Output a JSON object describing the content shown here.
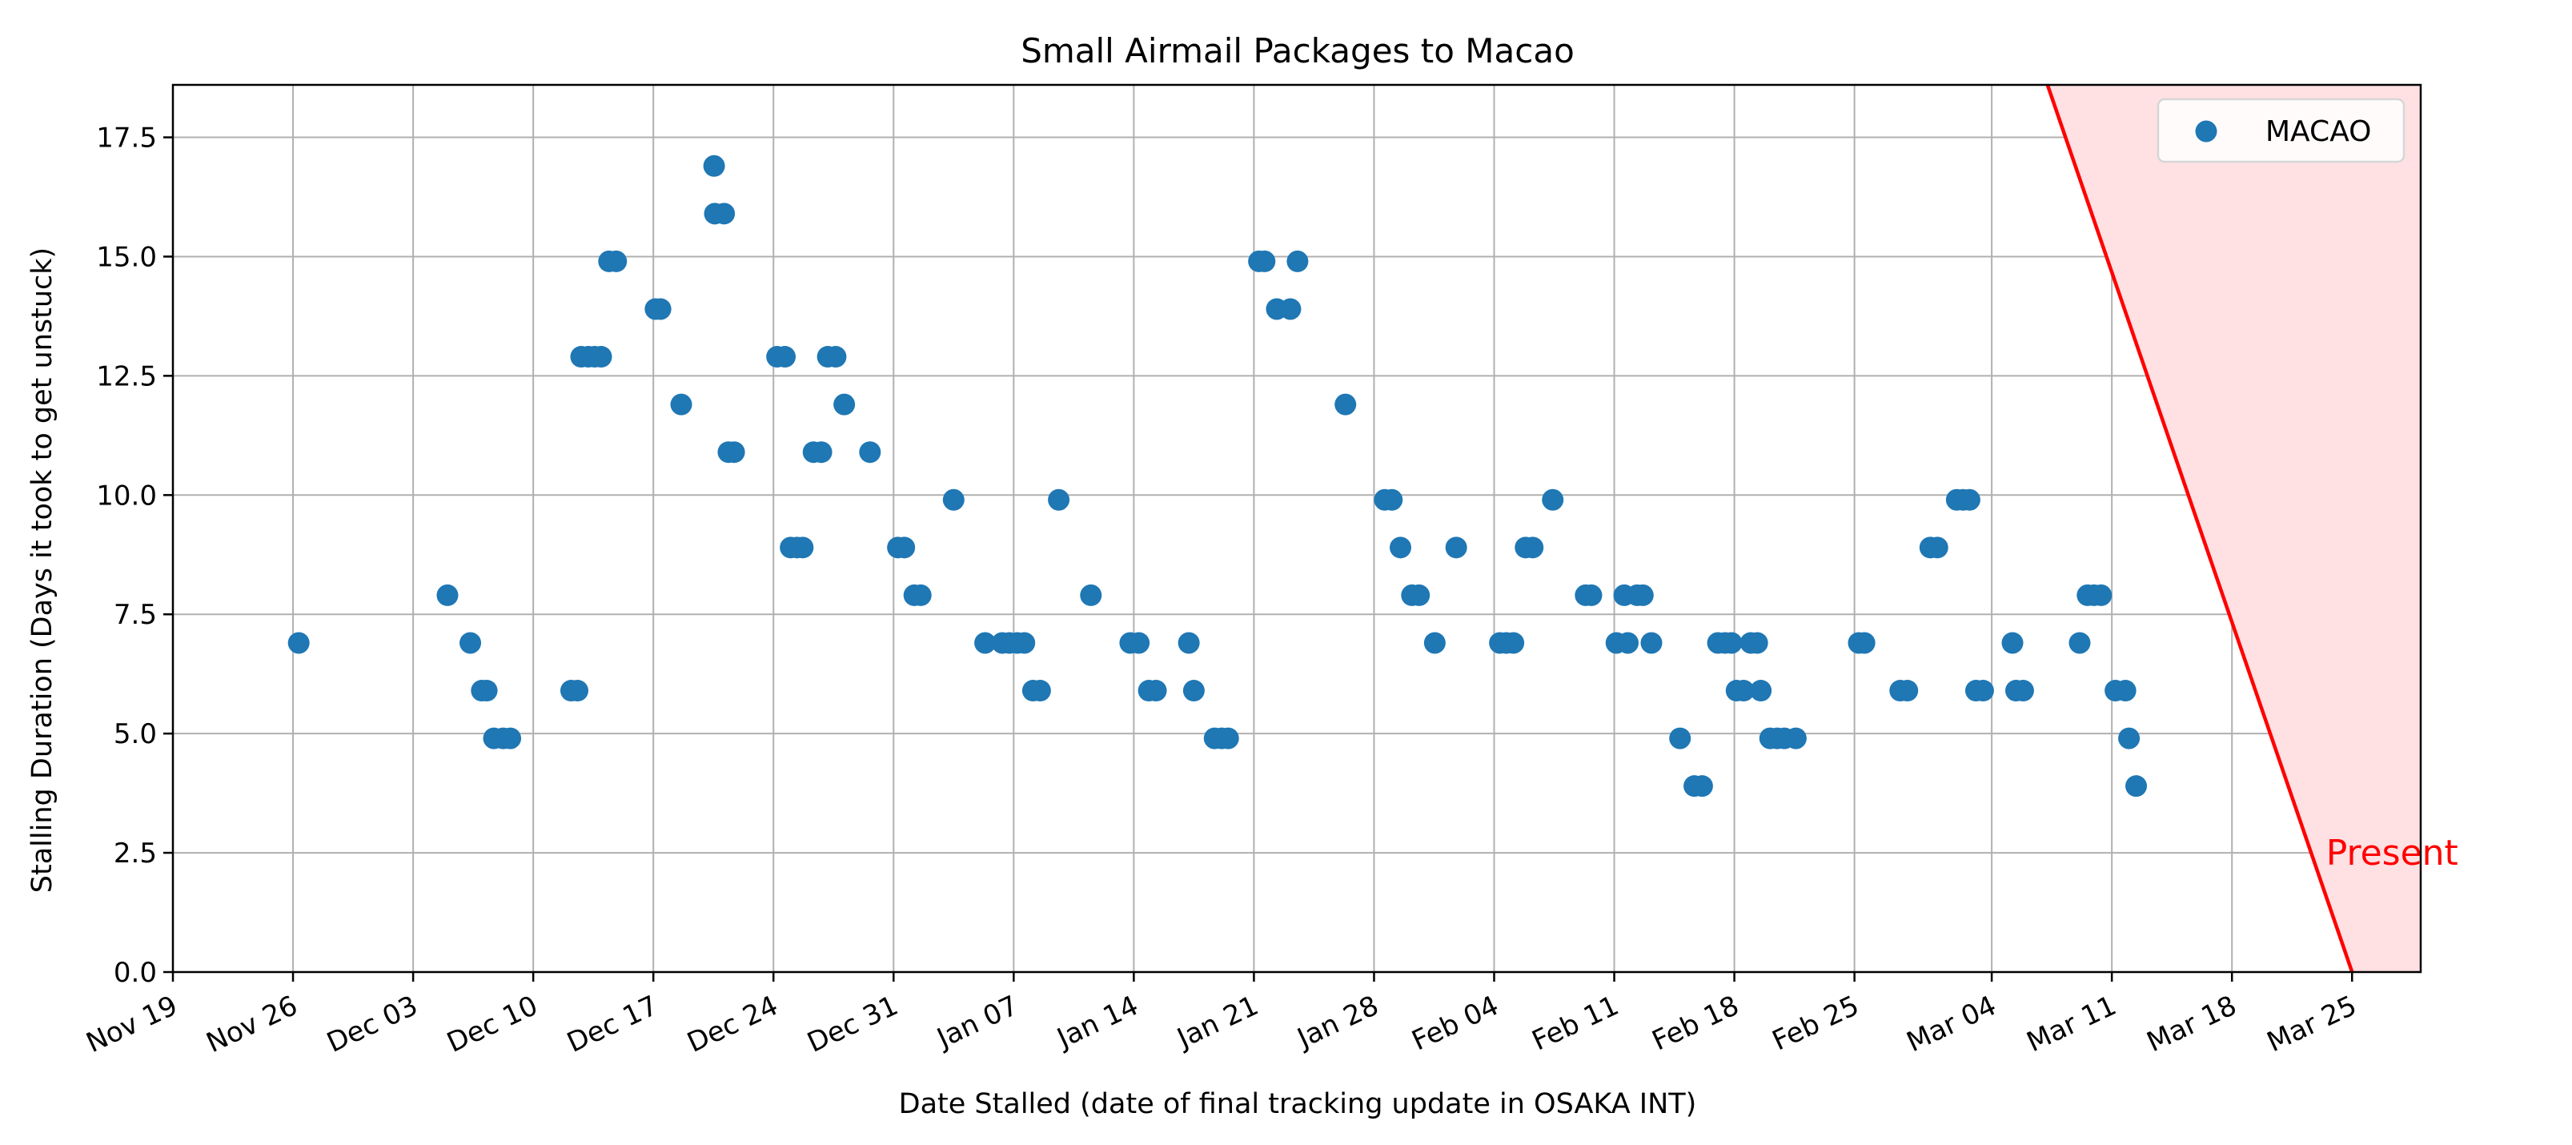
{
  "chart_data": {
    "type": "scatter",
    "title": "Small Airmail Packages to Macao",
    "xlabel": "Date Stalled (date of final tracking update in OSAKA INT)",
    "ylabel": "Stalling Duration (Days it took to get unstuck)",
    "xlim": [
      "2023-11-19",
      "2024-03-29"
    ],
    "ylim": [
      0,
      18.6
    ],
    "x_ticks": [
      {
        "date": "2023-11-19",
        "label": "Nov 19"
      },
      {
        "date": "2023-11-26",
        "label": "Nov 26"
      },
      {
        "date": "2023-12-03",
        "label": "Dec 03"
      },
      {
        "date": "2023-12-10",
        "label": "Dec 10"
      },
      {
        "date": "2023-12-17",
        "label": "Dec 17"
      },
      {
        "date": "2023-12-24",
        "label": "Dec 24"
      },
      {
        "date": "2023-12-31",
        "label": "Dec 31"
      },
      {
        "date": "2024-01-07",
        "label": "Jan 07"
      },
      {
        "date": "2024-01-14",
        "label": "Jan 14"
      },
      {
        "date": "2024-01-21",
        "label": "Jan 21"
      },
      {
        "date": "2024-01-28",
        "label": "Jan 28"
      },
      {
        "date": "2024-02-04",
        "label": "Feb 04"
      },
      {
        "date": "2024-02-11",
        "label": "Feb 11"
      },
      {
        "date": "2024-02-18",
        "label": "Feb 18"
      },
      {
        "date": "2024-02-25",
        "label": "Feb 25"
      },
      {
        "date": "2024-03-04",
        "label": "Mar 04"
      },
      {
        "date": "2024-03-11",
        "label": "Mar 11"
      },
      {
        "date": "2024-03-18",
        "label": "Mar 18"
      },
      {
        "date": "2024-03-25",
        "label": "Mar 25"
      }
    ],
    "y_ticks": [
      {
        "value": 0,
        "label": "0.0"
      },
      {
        "value": 2.5,
        "label": "2.5"
      },
      {
        "value": 5,
        "label": "5.0"
      },
      {
        "value": 7.5,
        "label": "7.5"
      },
      {
        "value": 10,
        "label": "10.0"
      },
      {
        "value": 12.5,
        "label": "12.5"
      },
      {
        "value": 15,
        "label": "15.0"
      },
      {
        "value": 17.5,
        "label": "17.5"
      }
    ],
    "grid": true,
    "legend_position": "top-right",
    "series": [
      {
        "name": "MACAO",
        "color": "#1f77b4",
        "points": [
          {
            "x": "2023-11-26 08:00",
            "y": 6.9
          },
          {
            "x": "2023-12-05 00:00",
            "y": 7.9
          },
          {
            "x": "2023-12-06 08:00",
            "y": 6.9
          },
          {
            "x": "2023-12-07 00:00",
            "y": 5.9
          },
          {
            "x": "2023-12-07 07:00",
            "y": 5.9
          },
          {
            "x": "2023-12-07 17:00",
            "y": 4.9
          },
          {
            "x": "2023-12-08 06:00",
            "y": 4.9
          },
          {
            "x": "2023-12-08 16:00",
            "y": 4.9
          },
          {
            "x": "2023-12-12 05:00",
            "y": 5.9
          },
          {
            "x": "2023-12-12 14:00",
            "y": 5.9
          },
          {
            "x": "2023-12-12 19:00",
            "y": 12.9
          },
          {
            "x": "2023-12-13 05:00",
            "y": 12.9
          },
          {
            "x": "2023-12-13 14:00",
            "y": 12.9
          },
          {
            "x": "2023-12-13 23:00",
            "y": 12.9
          },
          {
            "x": "2023-12-14 10:00",
            "y": 14.9
          },
          {
            "x": "2023-12-14 20:00",
            "y": 14.9
          },
          {
            "x": "2023-12-17 03:00",
            "y": 13.9
          },
          {
            "x": "2023-12-17 10:00",
            "y": 13.9
          },
          {
            "x": "2023-12-18 15:00",
            "y": 11.9
          },
          {
            "x": "2023-12-20 13:00",
            "y": 16.9
          },
          {
            "x": "2023-12-20 14:00",
            "y": 15.9
          },
          {
            "x": "2023-12-21 03:00",
            "y": 15.9
          },
          {
            "x": "2023-12-21 09:00",
            "y": 10.9
          },
          {
            "x": "2023-12-21 17:00",
            "y": 10.9
          },
          {
            "x": "2023-12-24 05:00",
            "y": 12.9
          },
          {
            "x": "2023-12-24 16:00",
            "y": 12.9
          },
          {
            "x": "2023-12-25 00:00",
            "y": 8.9
          },
          {
            "x": "2023-12-25 09:00",
            "y": 8.9
          },
          {
            "x": "2023-12-25 17:00",
            "y": 8.9
          },
          {
            "x": "2023-12-26 08:00",
            "y": 10.9
          },
          {
            "x": "2023-12-26 19:00",
            "y": 10.9
          },
          {
            "x": "2023-12-27 04:00",
            "y": 12.9
          },
          {
            "x": "2023-12-27 15:00",
            "y": 12.9
          },
          {
            "x": "2023-12-28 03:00",
            "y": 11.9
          },
          {
            "x": "2023-12-29 15:00",
            "y": 10.9
          },
          {
            "x": "2023-12-31 06:00",
            "y": 8.9
          },
          {
            "x": "2023-12-31 15:00",
            "y": 8.9
          },
          {
            "x": "2024-01-01 05:00",
            "y": 7.9
          },
          {
            "x": "2024-01-01 14:00",
            "y": 7.9
          },
          {
            "x": "2024-01-03 12:00",
            "y": 9.9
          },
          {
            "x": "2024-01-05 08:00",
            "y": 6.9
          },
          {
            "x": "2024-01-06 08:00",
            "y": 6.9
          },
          {
            "x": "2024-01-06 18:00",
            "y": 6.9
          },
          {
            "x": "2024-01-07 05:00",
            "y": 6.9
          },
          {
            "x": "2024-01-07 15:00",
            "y": 6.9
          },
          {
            "x": "2024-01-08 03:00",
            "y": 5.9
          },
          {
            "x": "2024-01-08 13:00",
            "y": 5.9
          },
          {
            "x": "2024-01-09 15:00",
            "y": 9.9
          },
          {
            "x": "2024-01-11 12:00",
            "y": 7.9
          },
          {
            "x": "2024-01-13 19:00",
            "y": 6.9
          },
          {
            "x": "2024-01-14 07:00",
            "y": 6.9
          },
          {
            "x": "2024-01-14 21:00",
            "y": 5.9
          },
          {
            "x": "2024-01-15 07:00",
            "y": 5.9
          },
          {
            "x": "2024-01-17 05:00",
            "y": 6.9
          },
          {
            "x": "2024-01-17 12:00",
            "y": 5.9
          },
          {
            "x": "2024-01-18 17:00",
            "y": 4.9
          },
          {
            "x": "2024-01-19 03:00",
            "y": 4.9
          },
          {
            "x": "2024-01-19 12:00",
            "y": 4.9
          },
          {
            "x": "2024-01-21 07:00",
            "y": 14.9
          },
          {
            "x": "2024-01-21 15:00",
            "y": 14.9
          },
          {
            "x": "2024-01-22 08:00",
            "y": 13.9
          },
          {
            "x": "2024-01-23 03:00",
            "y": 13.9
          },
          {
            "x": "2024-01-23 13:00",
            "y": 14.9
          },
          {
            "x": "2024-01-26 08:00",
            "y": 11.9
          },
          {
            "x": "2024-01-28 15:00",
            "y": 9.9
          },
          {
            "x": "2024-01-29 01:00",
            "y": 9.9
          },
          {
            "x": "2024-01-29 13:00",
            "y": 8.9
          },
          {
            "x": "2024-01-30 05:00",
            "y": 7.9
          },
          {
            "x": "2024-01-30 15:00",
            "y": 7.9
          },
          {
            "x": "2024-01-31 13:00",
            "y": 6.9
          },
          {
            "x": "2024-02-01 19:00",
            "y": 8.9
          },
          {
            "x": "2024-02-04 08:00",
            "y": 6.9
          },
          {
            "x": "2024-02-04 17:00",
            "y": 6.9
          },
          {
            "x": "2024-02-05 03:00",
            "y": 6.9
          },
          {
            "x": "2024-02-05 20:00",
            "y": 8.9
          },
          {
            "x": "2024-02-06 06:00",
            "y": 8.9
          },
          {
            "x": "2024-02-07 10:00",
            "y": 9.9
          },
          {
            "x": "2024-02-09 08:00",
            "y": 7.9
          },
          {
            "x": "2024-02-09 16:00",
            "y": 7.9
          },
          {
            "x": "2024-02-11 03:00",
            "y": 6.9
          },
          {
            "x": "2024-02-11 14:00",
            "y": 7.9
          },
          {
            "x": "2024-02-11 19:00",
            "y": 6.9
          },
          {
            "x": "2024-02-12 08:00",
            "y": 7.9
          },
          {
            "x": "2024-02-12 16:00",
            "y": 7.9
          },
          {
            "x": "2024-02-13 04:00",
            "y": 6.9
          },
          {
            "x": "2024-02-14 20:00",
            "y": 4.9
          },
          {
            "x": "2024-02-15 16:00",
            "y": 3.9
          },
          {
            "x": "2024-02-16 03:00",
            "y": 3.9
          },
          {
            "x": "2024-02-17 01:00",
            "y": 6.9
          },
          {
            "x": "2024-02-17 11:00",
            "y": 6.9
          },
          {
            "x": "2024-02-17 20:00",
            "y": 6.9
          },
          {
            "x": "2024-02-18 03:00",
            "y": 5.9
          },
          {
            "x": "2024-02-18 13:00",
            "y": 5.9
          },
          {
            "x": "2024-02-18 23:00",
            "y": 6.9
          },
          {
            "x": "2024-02-19 08:00",
            "y": 6.9
          },
          {
            "x": "2024-02-19 13:00",
            "y": 5.9
          },
          {
            "x": "2024-02-20 02:00",
            "y": 4.9
          },
          {
            "x": "2024-02-20 12:00",
            "y": 4.9
          },
          {
            "x": "2024-02-20 22:00",
            "y": 4.9
          },
          {
            "x": "2024-02-21 14:00",
            "y": 4.9
          },
          {
            "x": "2024-02-25 06:00",
            "y": 6.9
          },
          {
            "x": "2024-02-25 14:00",
            "y": 6.9
          },
          {
            "x": "2024-02-27 16:00",
            "y": 5.9
          },
          {
            "x": "2024-02-28 02:00",
            "y": 5.9
          },
          {
            "x": "2024-02-29 10:00",
            "y": 8.9
          },
          {
            "x": "2024-02-29 20:00",
            "y": 8.9
          },
          {
            "x": "2024-03-01 23:00",
            "y": 9.9
          },
          {
            "x": "2024-03-02 08:00",
            "y": 9.9
          },
          {
            "x": "2024-03-02 17:00",
            "y": 9.9
          },
          {
            "x": "2024-03-03 02:00",
            "y": 5.9
          },
          {
            "x": "2024-03-03 12:00",
            "y": 5.9
          },
          {
            "x": "2024-03-05 05:00",
            "y": 6.9
          },
          {
            "x": "2024-03-05 10:00",
            "y": 5.9
          },
          {
            "x": "2024-03-05 20:00",
            "y": 5.9
          },
          {
            "x": "2024-03-09 03:00",
            "y": 6.9
          },
          {
            "x": "2024-03-09 14:00",
            "y": 7.9
          },
          {
            "x": "2024-03-09 23:00",
            "y": 7.9
          },
          {
            "x": "2024-03-10 09:00",
            "y": 7.9
          },
          {
            "x": "2024-03-11 05:00",
            "y": 5.9
          },
          {
            "x": "2024-03-11 19:00",
            "y": 5.9
          },
          {
            "x": "2024-03-12 00:00",
            "y": 4.9
          },
          {
            "x": "2024-03-12 10:00",
            "y": 3.9
          }
        ]
      }
    ],
    "present_marker": {
      "label": "Present",
      "color": "#ff0000",
      "fill_color": "#ffe0e3",
      "line_top": {
        "x": "2024-03-07 06:00",
        "y": 18.6
      },
      "line_bottom": {
        "x": "2024-03-25 00:00",
        "y": 0
      }
    }
  }
}
